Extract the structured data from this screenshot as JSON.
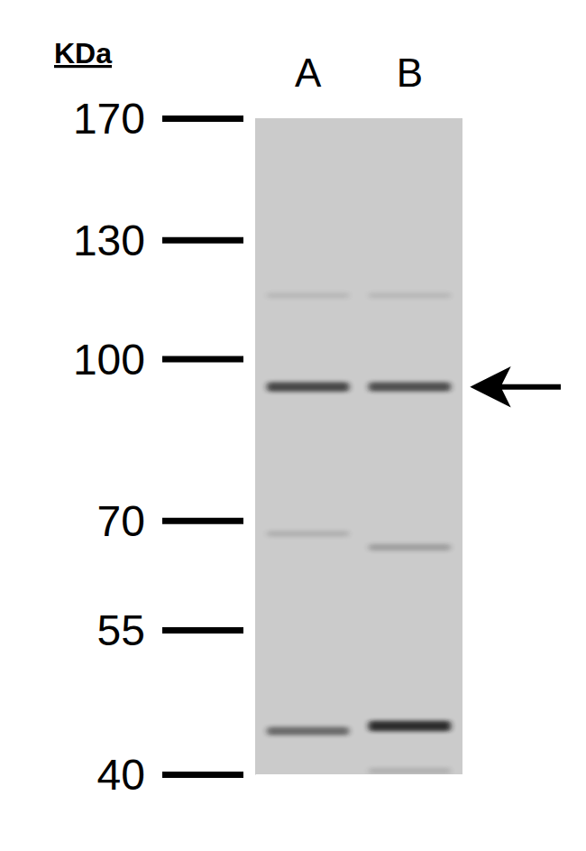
{
  "chart_data": {
    "type": "western_blot",
    "y_label": "KDa",
    "log": "y",
    "ylim": [
      40,
      170
    ],
    "yticks": [
      170,
      130,
      100,
      70,
      55,
      40
    ],
    "color": "#1a1a1a",
    "lanes": [
      {
        "label": "A",
        "bands": [
          115,
          94,
          68,
          44
        ],
        "intensity": [
          0.1,
          0.75,
          0.15,
          0.55
        ]
      },
      {
        "label": "B",
        "bands": [
          115,
          94,
          66,
          44.5,
          40.3
        ],
        "intensity": [
          0.1,
          0.7,
          0.25,
          0.9,
          0.15
        ]
      }
    ],
    "arrow_at": 94
  }
}
